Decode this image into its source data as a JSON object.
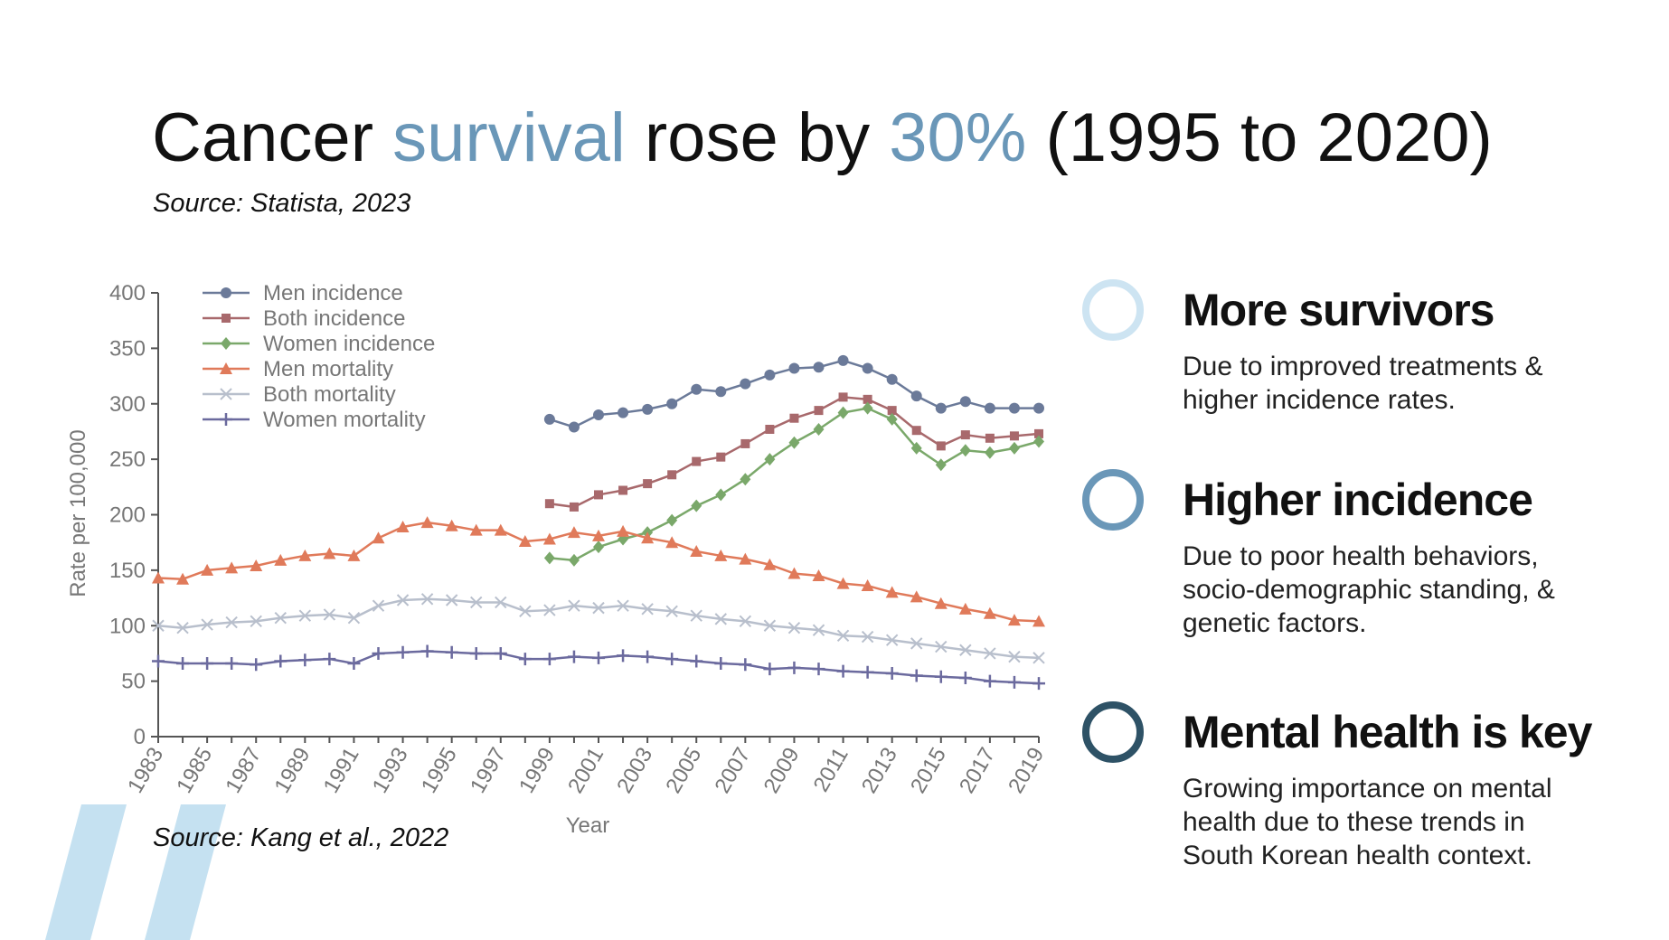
{
  "title_parts": [
    {
      "text": "Cancer ",
      "color": "#111111"
    },
    {
      "text": "survival",
      "color": "#6a97b8"
    },
    {
      "text": " rose by ",
      "color": "#111111"
    },
    {
      "text": "30%",
      "color": "#6a97b8"
    },
    {
      "text": " (1995 to 2020)",
      "color": "#111111"
    }
  ],
  "source_top": "Source: Statista, 2023",
  "source_bottom": "Source: Kang et al., 2022",
  "points": [
    {
      "heading": "More survivors",
      "ring": "#cde4f2",
      "lines": [
        "Due to improved treatments &",
        "higher incidence rates."
      ]
    },
    {
      "heading": "Higher incidence",
      "ring": "#6a97b8",
      "lines": [
        "Due to poor health behaviors,",
        "socio-demographic standing,  &",
        "genetic factors."
      ]
    },
    {
      "heading": "Mental health is key",
      "ring": "#2e5266",
      "lines": [
        "Growing importance on mental",
        "health due to these trends in",
        "South Korean health context."
      ]
    }
  ],
  "chart_data": {
    "type": "line",
    "x_label": "Year",
    "y_label": "Rate per 100,000",
    "x": [
      1983,
      1984,
      1985,
      1986,
      1987,
      1988,
      1989,
      1990,
      1991,
      1992,
      1993,
      1994,
      1995,
      1996,
      1997,
      1998,
      1999,
      2000,
      2001,
      2002,
      2003,
      2004,
      2005,
      2006,
      2007,
      2008,
      2009,
      2010,
      2011,
      2012,
      2013,
      2014,
      2015,
      2016,
      2017,
      2018,
      2019
    ],
    "xlim": [
      1983,
      2019
    ],
    "xticks": [
      1983,
      1985,
      1987,
      1989,
      1991,
      1993,
      1995,
      1997,
      1999,
      2001,
      2003,
      2005,
      2007,
      2009,
      2011,
      2013,
      2015,
      2017,
      2019
    ],
    "ylim": [
      0,
      400
    ],
    "yticks": [
      0,
      50,
      100,
      150,
      200,
      250,
      300,
      350,
      400
    ],
    "grid": false,
    "series": [
      {
        "name": "Men incidence",
        "color": "#6b7a99",
        "marker": "circle",
        "values": [
          null,
          null,
          null,
          null,
          null,
          null,
          null,
          null,
          null,
          null,
          null,
          null,
          null,
          null,
          null,
          null,
          286,
          279,
          290,
          292,
          295,
          300,
          313,
          311,
          318,
          326,
          332,
          333,
          339,
          332,
          322,
          307,
          296,
          302,
          296,
          296,
          296
        ]
      },
      {
        "name": "Both incidence",
        "color": "#a8696c",
        "marker": "square",
        "values": [
          null,
          null,
          null,
          null,
          null,
          null,
          null,
          null,
          null,
          null,
          null,
          null,
          null,
          null,
          null,
          null,
          210,
          207,
          218,
          222,
          228,
          236,
          248,
          252,
          264,
          277,
          287,
          294,
          306,
          304,
          294,
          276,
          262,
          272,
          269,
          271,
          273
        ]
      },
      {
        "name": "Women incidence",
        "color": "#7aa86a",
        "marker": "diamond",
        "values": [
          null,
          null,
          null,
          null,
          null,
          null,
          null,
          null,
          null,
          null,
          null,
          null,
          null,
          null,
          null,
          null,
          161,
          159,
          171,
          178,
          184,
          195,
          208,
          218,
          232,
          250,
          265,
          277,
          292,
          296,
          286,
          260,
          245,
          258,
          256,
          260,
          266
        ]
      },
      {
        "name": "Men mortality",
        "color": "#e07a5a",
        "marker": "triangle",
        "values": [
          143,
          142,
          150,
          152,
          154,
          159,
          163,
          165,
          163,
          179,
          189,
          193,
          190,
          186,
          186,
          176,
          178,
          184,
          181,
          185,
          179,
          175,
          167,
          163,
          160,
          155,
          147,
          145,
          138,
          136,
          130,
          126,
          120,
          115,
          111,
          105,
          104
        ]
      },
      {
        "name": "Both mortality",
        "color": "#b8bfcc",
        "marker": "x",
        "values": [
          100,
          98,
          101,
          103,
          104,
          107,
          109,
          110,
          107,
          118,
          123,
          124,
          123,
          121,
          121,
          113,
          114,
          118,
          116,
          118,
          115,
          113,
          109,
          106,
          104,
          100,
          98,
          96,
          91,
          90,
          87,
          84,
          81,
          78,
          75,
          72,
          71
        ]
      },
      {
        "name": "Women mortality",
        "color": "#6b6a9e",
        "marker": "plus",
        "values": [
          68,
          66,
          66,
          66,
          65,
          68,
          69,
          70,
          66,
          75,
          76,
          77,
          76,
          75,
          75,
          70,
          70,
          72,
          71,
          73,
          72,
          70,
          68,
          66,
          65,
          61,
          62,
          61,
          59,
          58,
          57,
          55,
          54,
          53,
          50,
          49,
          48
        ]
      }
    ]
  }
}
